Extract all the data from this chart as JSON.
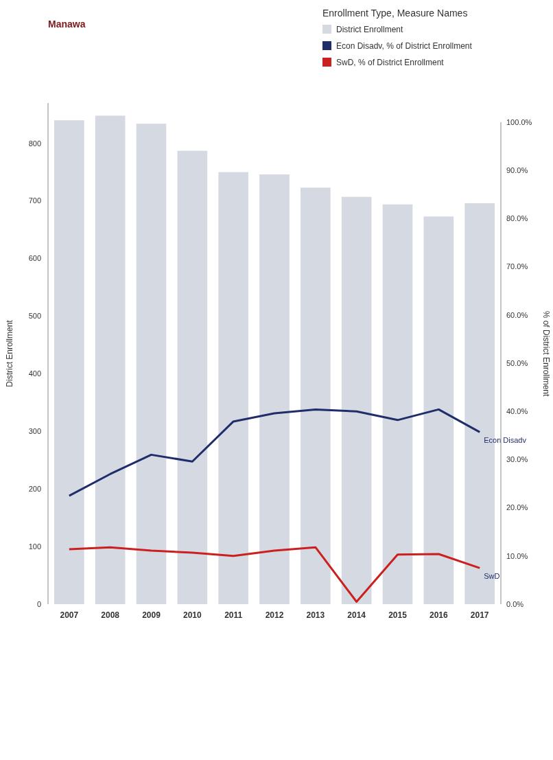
{
  "chart_data": {
    "type": "bar",
    "title": "Manawa",
    "ylabel": "District Enrollment",
    "y2label": "% of District Enrollment",
    "legend_title": "Enrollment Type, Measure Names",
    "categories": [
      "2007",
      "2008",
      "2009",
      "2010",
      "2011",
      "2012",
      "2013",
      "2014",
      "2015",
      "2016",
      "2017"
    ],
    "series": [
      {
        "name": "District Enrollment",
        "color": "#d5d9e1",
        "values": [
          840,
          848,
          834,
          787,
          750,
          746,
          723,
          707,
          694,
          673,
          696
        ]
      },
      {
        "name": "Econ Disadv, % of District Enrollment",
        "type": "line",
        "axis": "y2",
        "color": "#1f2d6b",
        "values": [
          22.5,
          27,
          31,
          29.6,
          37.9,
          39.6,
          40.4,
          40,
          38.2,
          40.4,
          35.7
        ]
      },
      {
        "name": "SwD, % of District Enrollment",
        "type": "line",
        "axis": "y2",
        "color": "#cc1f1f",
        "values": [
          11.4,
          11.8,
          11.1,
          10.7,
          10,
          11.1,
          11.8,
          0.5,
          10.3,
          10.4,
          7.5
        ]
      }
    ],
    "annotations": [
      "Econ Disadv",
      "SwD"
    ],
    "ylim": [
      0,
      870
    ],
    "yticks": [
      0,
      100,
      200,
      300,
      400,
      500,
      600,
      700,
      800
    ],
    "y2lim": [
      0,
      100
    ],
    "y2ticks": [
      {
        "value": 0,
        "label": "0.0%"
      },
      {
        "value": 10,
        "label": "10.0%"
      },
      {
        "value": 20,
        "label": "20.0%"
      },
      {
        "value": 30,
        "label": "30.0%"
      },
      {
        "value": 40,
        "label": "40.0%"
      },
      {
        "value": 50,
        "label": "50.0%"
      },
      {
        "value": 60,
        "label": "60.0%"
      },
      {
        "value": 70,
        "label": "70.0%"
      },
      {
        "value": 80,
        "label": "80.0%"
      },
      {
        "value": 90,
        "label": "90.0%"
      },
      {
        "value": 100,
        "label": "100.0%"
      }
    ],
    "legend": "top right",
    "grid": false,
    "marker": "none"
  }
}
